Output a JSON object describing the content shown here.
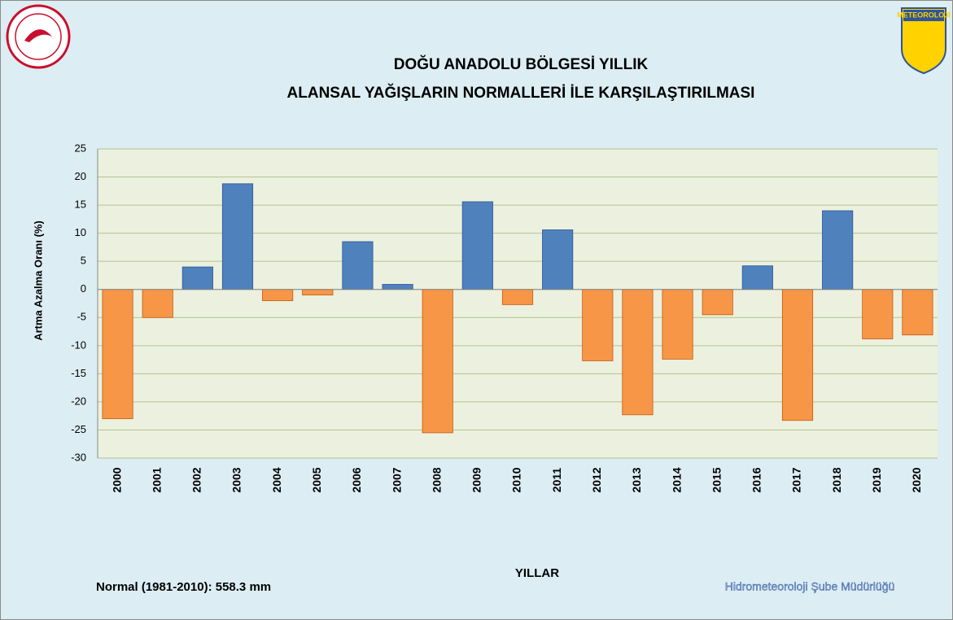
{
  "logo_text": "METEOROLOJİ",
  "chart_data": {
    "type": "bar",
    "title": [
      "DOĞU ANADOLU BÖLGESİ  YILLIK",
      "ALANSAL YAĞIŞLARIN NORMALLERİ İLE KARŞILAŞTIRILMASI"
    ],
    "y_label": "Artma Azalma Oranı (%)",
    "x_label": "YILLAR",
    "note": "Normal (1981-2010): 558.3 mm",
    "credit": "Hidrometeoroloji Şube Müdürlüğü",
    "categories": [
      "2000",
      "2001",
      "2002",
      "2003",
      "2004",
      "2005",
      "2006",
      "2007",
      "2008",
      "2009",
      "2010",
      "2011",
      "2012",
      "2013",
      "2014",
      "2015",
      "2016",
      "2017",
      "2018",
      "2019",
      "2020"
    ],
    "values": [
      -23,
      -5,
      4,
      18.8,
      -2,
      -1,
      8.5,
      0.9,
      -25.5,
      15.6,
      -2.7,
      10.6,
      -12.7,
      -22.3,
      -12.4,
      -4.5,
      4.2,
      -23.3,
      14,
      -8.8,
      -8.1
    ],
    "positive_color": "#4f81bd",
    "negative_color": "#f79646",
    "ylim": [
      -30,
      25
    ],
    "yticks": [
      -30,
      -25,
      -20,
      -15,
      -10,
      -5,
      0,
      5,
      10,
      15,
      20,
      25
    ],
    "grid": true
  }
}
